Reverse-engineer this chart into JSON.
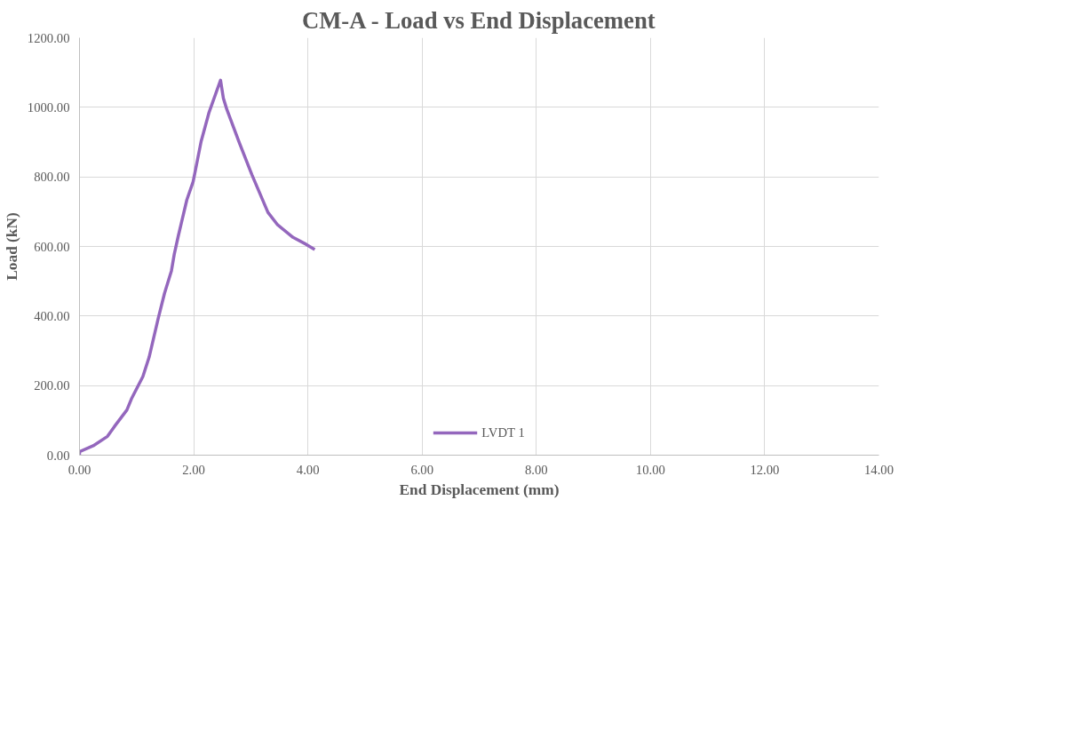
{
  "chart_data": {
    "type": "line",
    "title": "CM-A - Load vs End Displacement",
    "xlabel": "End Displacement (mm)",
    "ylabel": "Load (kN)",
    "xlim": [
      0,
      14
    ],
    "ylim": [
      0,
      1200
    ],
    "xticks": [
      {
        "value": 0,
        "label": "0.00"
      },
      {
        "value": 2,
        "label": "2.00"
      },
      {
        "value": 4,
        "label": "4.00"
      },
      {
        "value": 6,
        "label": "6.00"
      },
      {
        "value": 8,
        "label": "8.00"
      },
      {
        "value": 10,
        "label": "10.00"
      },
      {
        "value": 12,
        "label": "12.00"
      },
      {
        "value": 14,
        "label": "14.00"
      }
    ],
    "yticks": [
      {
        "value": 0,
        "label": "0.00"
      },
      {
        "value": 200,
        "label": "200.00"
      },
      {
        "value": 400,
        "label": "400.00"
      },
      {
        "value": 600,
        "label": "600.00"
      },
      {
        "value": 800,
        "label": "800.00"
      },
      {
        "value": 1000,
        "label": "1000.00"
      },
      {
        "value": 1200,
        "label": "1200.00"
      }
    ],
    "grid": true,
    "legend": "bottom",
    "marker": "none",
    "line_style": "solid",
    "series": [
      {
        "name": "LVDT 1",
        "color": "#9467bd",
        "x": [
          0,
          0,
          0.24,
          0.49,
          0.61,
          0.83,
          0.91,
          1.11,
          1.22,
          1.3,
          1.38,
          1.49,
          1.61,
          1.66,
          1.73,
          1.88,
          1.99,
          2.13,
          2.27,
          2.47,
          2.52,
          2.58,
          2.8,
          3.02,
          3.3,
          3.47,
          3.74,
          3.97,
          4.12
        ],
        "values": [
          0,
          10,
          27,
          54,
          82,
          130,
          162,
          226,
          282,
          338,
          394,
          466,
          530,
          578,
          630,
          734,
          786,
          902,
          986,
          1078,
          1026,
          994,
          898,
          806,
          698,
          662,
          626,
          606,
          591
        ]
      }
    ]
  }
}
